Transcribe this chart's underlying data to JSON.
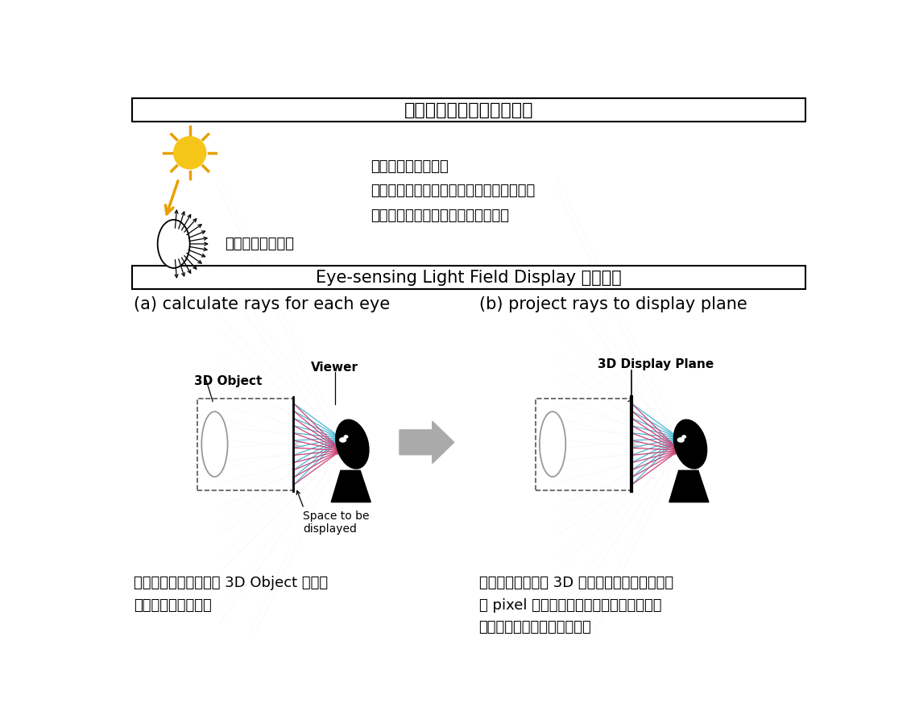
{
  "bg_color": "#ffffff",
  "title1": "光線による空間定義の一例",
  "title2": "Eye-sensing Light Field Display の考え方",
  "label_a": "(a) calculate rays for each eye",
  "label_b": "(b) project rays to display plane",
  "viewer_label": "Viewer",
  "object_label": "3D Object",
  "display_plane_label": "3D Display Plane",
  "space_label": "Space to be\ndisplayed",
  "text_top_right": "全ての光を記述する\nライトフィールド（光線空間）として定義\n課題：全ての光線の再現は非現実的",
  "text_left_top": "無数の光線で表現",
  "text_bottom_left": "表示装置内に配置した 3D Object から、\n両眼に届く光を算出",
  "text_bottom_right": "光源としての裸眼 3D ディスプレイ面に投影、\n各 pixel から、左右の眼に向けた画素値を\nリアルタイムに計算し、描画",
  "ray_color_blue": "#4DB8D4",
  "ray_color_pink": "#CC4477",
  "box_color": "#555555",
  "arrow_gray": "#AAAAAA",
  "sun_color": "#F5C518",
  "sun_ray_color": "#E8A000"
}
